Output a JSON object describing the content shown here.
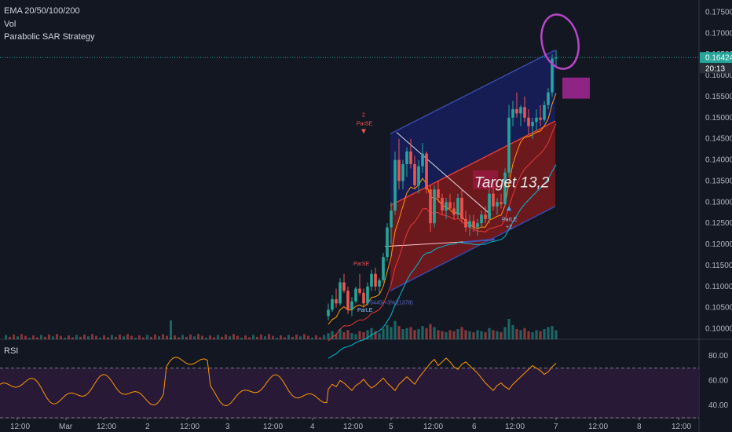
{
  "indicators": {
    "ema": "EMA 20/50/100/200",
    "vol": "Vol",
    "strategy": "Parabolic SAR Strategy",
    "rsi": "RSI"
  },
  "price_axis": {
    "ticks": [
      "0.17500",
      "0.17000",
      "0.16500",
      "0.16000",
      "0.15500",
      "0.15000",
      "0.14500",
      "0.14000",
      "0.13500",
      "0.13000",
      "0.12500",
      "0.12000",
      "0.11500",
      "0.11000",
      "0.10500",
      "0.10000"
    ],
    "current_price": "0.16424",
    "countdown": "20:13"
  },
  "rsi_axis": {
    "ticks": [
      "80.00",
      "60.00",
      "40.00"
    ]
  },
  "time_axis": {
    "labels": [
      "12:00",
      "Mar",
      "12:00",
      "2",
      "12:00",
      "3",
      "12:00",
      "4",
      "12:00",
      "5",
      "12:00",
      "6",
      "12:00",
      "7",
      "12:00",
      "8",
      "12:00"
    ]
  },
  "annotations": {
    "target": "Target 13,2",
    "short_signal": "ParSE",
    "short_signal_size": "2",
    "long_signal": "ParLE",
    "long_signal_size": "+2",
    "long_signal_early": "ParLE",
    "short_signal_early": "ParSE",
    "measure_text": "+5445(+3%)(1378)"
  },
  "colors": {
    "background": "#131722",
    "bull": "#26a69a",
    "bear": "#ef5350",
    "channel_upper": "#1a237e",
    "channel_lower": "#b71c1c",
    "highlight": "#8e2483",
    "rsi_line": "#ff9800",
    "rsi_band": "#2b1a3a"
  },
  "chart_data": {
    "type": "candlestick",
    "symbol_price_range": [
      0.0975,
      0.1775
    ],
    "rsi_range": [
      30,
      90
    ],
    "rsi_bands": [
      70,
      30
    ],
    "candles": [
      [
        0.103,
        0.106,
        0.102,
        0.1045
      ],
      [
        0.1045,
        0.108,
        0.104,
        0.107
      ],
      [
        0.107,
        0.1095,
        0.105,
        0.106
      ],
      [
        0.106,
        0.112,
        0.1055,
        0.111
      ],
      [
        0.111,
        0.113,
        0.1085,
        0.109
      ],
      [
        0.109,
        0.11,
        0.1035,
        0.1045
      ],
      [
        0.1045,
        0.1075,
        0.103,
        0.1065
      ],
      [
        0.1065,
        0.11,
        0.106,
        0.1095
      ],
      [
        0.1095,
        0.113,
        0.108,
        0.1085
      ],
      [
        0.1085,
        0.1095,
        0.105,
        0.106
      ],
      [
        0.106,
        0.111,
        0.1055,
        0.11
      ],
      [
        0.11,
        0.114,
        0.109,
        0.113
      ],
      [
        0.113,
        0.1145,
        0.109,
        0.11
      ],
      [
        0.11,
        0.112,
        0.108,
        0.1115
      ],
      [
        0.1115,
        0.118,
        0.111,
        0.117
      ],
      [
        0.117,
        0.125,
        0.116,
        0.124
      ],
      [
        0.124,
        0.13,
        0.12,
        0.128
      ],
      [
        0.128,
        0.142,
        0.127,
        0.14
      ],
      [
        0.14,
        0.145,
        0.133,
        0.135
      ],
      [
        0.135,
        0.14,
        0.133,
        0.139
      ],
      [
        0.139,
        0.143,
        0.136,
        0.142
      ],
      [
        0.142,
        0.145,
        0.138,
        0.139
      ],
      [
        0.139,
        0.141,
        0.133,
        0.134
      ],
      [
        0.134,
        0.14,
        0.132,
        0.1385
      ],
      [
        0.1385,
        0.144,
        0.137,
        0.1415
      ],
      [
        0.1415,
        0.142,
        0.132,
        0.133
      ],
      [
        0.133,
        0.134,
        0.123,
        0.125
      ],
      [
        0.125,
        0.134,
        0.124,
        0.133
      ],
      [
        0.133,
        0.135,
        0.13,
        0.131
      ],
      [
        0.131,
        0.132,
        0.127,
        0.128
      ],
      [
        0.128,
        0.131,
        0.126,
        0.13
      ],
      [
        0.13,
        0.132,
        0.128,
        0.1285
      ],
      [
        0.1285,
        0.13,
        0.126,
        0.127
      ],
      [
        0.127,
        0.132,
        0.126,
        0.131
      ],
      [
        0.131,
        0.133,
        0.125,
        0.126
      ],
      [
        0.126,
        0.128,
        0.123,
        0.124
      ],
      [
        0.124,
        0.127,
        0.122,
        0.1255
      ],
      [
        0.1255,
        0.127,
        0.123,
        0.124
      ],
      [
        0.124,
        0.126,
        0.122,
        0.125
      ],
      [
        0.125,
        0.128,
        0.124,
        0.127
      ],
      [
        0.127,
        0.129,
        0.125,
        0.126
      ],
      [
        0.126,
        0.133,
        0.125,
        0.132
      ],
      [
        0.132,
        0.134,
        0.128,
        0.129
      ],
      [
        0.129,
        0.131,
        0.127,
        0.13
      ],
      [
        0.13,
        0.132,
        0.1285,
        0.1295
      ],
      [
        0.1295,
        0.138,
        0.129,
        0.137
      ],
      [
        0.137,
        0.153,
        0.136,
        0.15
      ],
      [
        0.15,
        0.154,
        0.148,
        0.152
      ],
      [
        0.152,
        0.156,
        0.15,
        0.151
      ],
      [
        0.151,
        0.153,
        0.148,
        0.1525
      ],
      [
        0.1525,
        0.155,
        0.149,
        0.15
      ],
      [
        0.15,
        0.152,
        0.146,
        0.148
      ],
      [
        0.148,
        0.15,
        0.145,
        0.149
      ],
      [
        0.149,
        0.152,
        0.147,
        0.15
      ],
      [
        0.15,
        0.153,
        0.148,
        0.1495
      ],
      [
        0.1495,
        0.154,
        0.149,
        0.153
      ],
      [
        0.153,
        0.157,
        0.152,
        0.156
      ],
      [
        0.156,
        0.165,
        0.155,
        0.164
      ],
      [
        0.164,
        0.166,
        0.162,
        0.1642
      ]
    ],
    "volume": [
      6,
      8,
      5,
      10,
      7,
      9,
      6,
      5,
      8,
      7,
      9,
      11,
      8,
      6,
      10,
      14,
      12,
      18,
      13,
      10,
      11,
      12,
      9,
      10,
      13,
      11,
      15,
      12,
      9,
      8,
      7,
      9,
      8,
      10,
      12,
      9,
      8,
      7,
      9,
      8,
      7,
      11,
      9,
      8,
      7,
      12,
      20,
      14,
      10,
      9,
      11,
      8,
      7,
      9,
      8,
      10,
      12,
      13,
      9
    ],
    "rsi": [
      53,
      57,
      55,
      60,
      58,
      55,
      52,
      56,
      58,
      61,
      57,
      54,
      56,
      59,
      62,
      58,
      55,
      52,
      57,
      60,
      63,
      60,
      57,
      62,
      66,
      70,
      74,
      77,
      72,
      75,
      78,
      75,
      71,
      69,
      73,
      75,
      72,
      69,
      66,
      62,
      58,
      55,
      52,
      56,
      58,
      55,
      53,
      57,
      60,
      63,
      66,
      69,
      72,
      70,
      68,
      65,
      67,
      71,
      74
    ]
  }
}
